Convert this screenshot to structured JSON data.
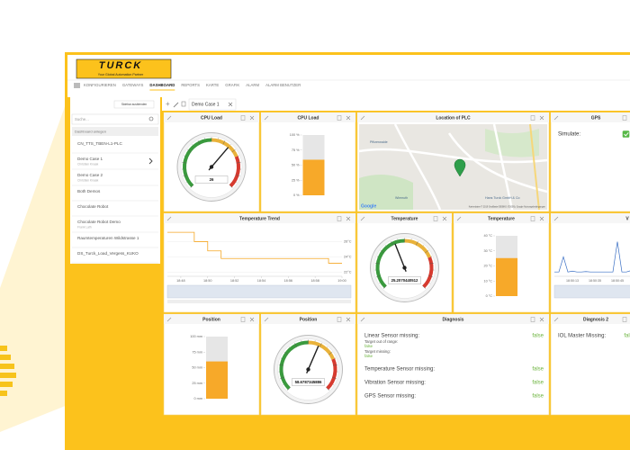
{
  "header": {
    "logo": "TURCK",
    "tagline": "Your Global Automation Partner"
  },
  "nav": [
    {
      "label": "KONFIGURIEREN",
      "active": false
    },
    {
      "label": "GATEWAYS",
      "active": false
    },
    {
      "label": "DASHBOARD",
      "active": true
    },
    {
      "label": "REPORTS",
      "active": false
    },
    {
      "label": "KARTE",
      "active": false
    },
    {
      "label": "GRAFIK",
      "active": false
    },
    {
      "label": "ALARM",
      "active": false
    },
    {
      "label": "ALARM BENUTZER",
      "active": false
    }
  ],
  "sidebar": {
    "toggle": "Sidebar ausblenden",
    "search": "Suche...",
    "section": "Dashboard anlegen",
    "items": [
      {
        "name": "CN_TTS_TBEN-L1-PLC"
      },
      {
        "name": "Demo Case 1",
        "owner": "Christian Knaak",
        "active": true
      },
      {
        "name": "Demo Case 2",
        "owner": "Christian Knaak"
      },
      {
        "name": "Both Demos"
      },
      {
        "name": "Chocolate Robot"
      },
      {
        "name": "Chocolate Robot Demo",
        "owner": "Frank Lath"
      },
      {
        "name": "Raumtemperaturen Wildstrasse 1"
      },
      {
        "name": "DS_Turck_Load_Vergess_KUKO"
      }
    ]
  },
  "tabs": [
    "Demo Case 1"
  ],
  "widgets": [
    {
      "type": "gauge",
      "title": "CPU Load",
      "value": 26,
      "ylim": [
        0,
        40
      ]
    },
    {
      "type": "bar",
      "title": "CPU Load",
      "value": 59,
      "ylim": [
        0,
        100
      ],
      "yticks": [
        {
          "value": 100,
          "label": "100 %"
        },
        {
          "value": 75,
          "label": "75 %"
        },
        {
          "value": 50,
          "label": "50 %"
        },
        {
          "value": 25,
          "label": "25 %"
        },
        {
          "value": 0,
          "label": "0 %"
        }
      ]
    },
    {
      "type": "map",
      "title": "Location of PLC",
      "labels": [
        "Pfitzerwalde",
        "Hans Turck GmbH & Co",
        "Wiemuth"
      ],
      "attribution": "Google",
      "credits": "Kartendaten © 2019 GeoBasis-DE/BKG (©2009), Google   Nutzungsbedingungen"
    },
    {
      "type": "status",
      "title": "GPS",
      "rows": [
        {
          "label": "Simulate:",
          "checked": true
        }
      ]
    },
    {
      "type": "line",
      "title": "Temperature Trend",
      "x": [
        "18:47",
        "18:49",
        "18:49",
        "18:50",
        "18:50",
        "18:51",
        "18:51",
        "18:59",
        "18:59",
        "19:00"
      ],
      "series": [
        {
          "color": "#f5a623",
          "values": [
            27.2,
            27.2,
            26,
            26,
            24.8,
            24.8,
            23.8,
            23.8,
            23.2,
            23.2
          ]
        }
      ],
      "xlim": [
        "18:47",
        "19:00"
      ],
      "xticks": [
        "18:48",
        "18:50",
        "18:52",
        "18:54",
        "18:56",
        "18:58",
        "19:00"
      ],
      "ylim": [
        21.5,
        27.8
      ],
      "yticks": [
        {
          "value": 26,
          "label": "26°C"
        },
        {
          "value": 24,
          "label": "24°C"
        },
        {
          "value": 22,
          "label": "22°C"
        }
      ]
    },
    {
      "type": "gauge",
      "title": "Temperature",
      "value": 25.2070440512,
      "ylim": [
        0,
        60
      ]
    },
    {
      "type": "bar",
      "title": "Temperature",
      "value": 25.2070440512,
      "ylim": [
        0,
        40
      ],
      "yticks": [
        {
          "value": 40,
          "label": "40 °C"
        },
        {
          "value": 30,
          "label": "30 °C"
        },
        {
          "value": 20,
          "label": "20 °C"
        },
        {
          "value": 10,
          "label": "10 °C"
        },
        {
          "value": 0,
          "label": "0 °C"
        }
      ]
    },
    {
      "type": "spark",
      "title": "V",
      "categories": [
        null,
        null,
        null,
        null,
        "18:50:13",
        null,
        null,
        null,
        null,
        "18:50:35",
        null,
        null,
        null,
        null,
        "18:50:45",
        null,
        null,
        null,
        null,
        null
      ],
      "series": [
        {
          "color": "#3a6fc4",
          "values": [
            1,
            1,
            4.5,
            1,
            1.2,
            1,
            1,
            1.1,
            1,
            1,
            1,
            1,
            1,
            1,
            8,
            1,
            1,
            1.3,
            1,
            1
          ]
        }
      ],
      "ylim": [
        0,
        10
      ]
    },
    {
      "type": "bar",
      "title": "Position",
      "value": 60,
      "ylim": [
        0,
        100
      ],
      "yticks": [
        {
          "value": 100,
          "label": "100 mm"
        },
        {
          "value": 75,
          "label": "75 mm"
        },
        {
          "value": 50,
          "label": "50 mm"
        },
        {
          "value": 25,
          "label": "25 mm"
        },
        {
          "value": 0,
          "label": "0 mm"
        }
      ]
    },
    {
      "type": "gauge",
      "title": "Position",
      "value": 58.6787345886,
      "ylim": [
        0,
        100
      ]
    },
    {
      "type": "diagnosis",
      "title": "Diagnosis",
      "rows": [
        {
          "label": "Linear Sensor missing:",
          "value": "false",
          "sub": [
            {
              "label": "Target out of range:",
              "value": "false"
            },
            {
              "label": "Target missing:",
              "value": "false"
            }
          ]
        },
        {
          "label": "Temperature Sensor missing:",
          "value": "false"
        },
        {
          "label": "Vibration Sensor missing:",
          "value": "false"
        },
        {
          "label": "GPS Sensor missing:",
          "value": "false"
        }
      ]
    },
    {
      "type": "diagnosis",
      "title": "Diagnosis 2",
      "rows": [
        {
          "label": "IOL Master Missing:",
          "value": "false"
        }
      ]
    }
  ]
}
